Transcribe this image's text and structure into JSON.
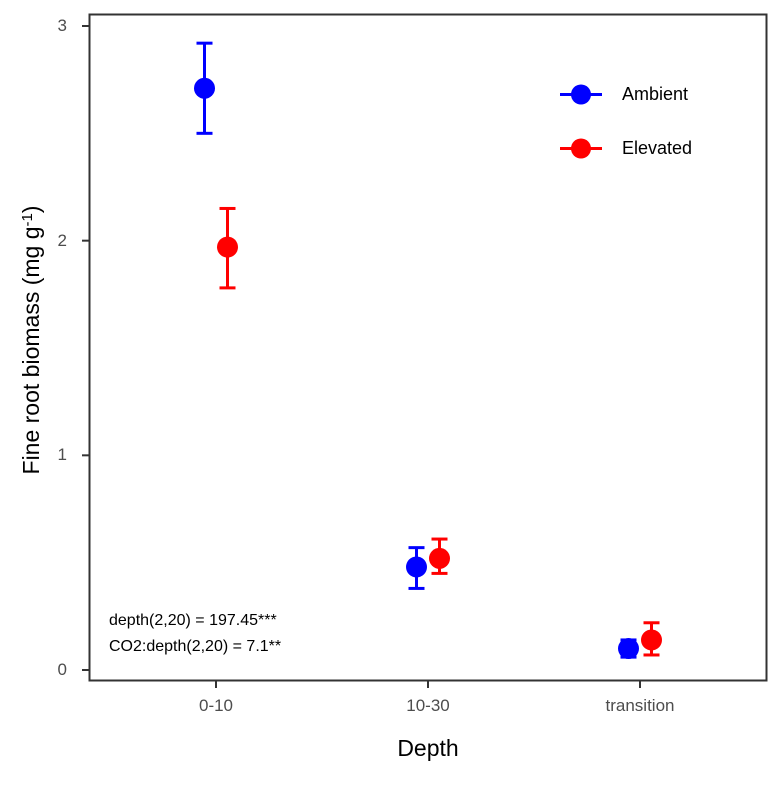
{
  "colors": {
    "ambient": "#0000FF",
    "elevated": "#FF0000",
    "panel_border": "#333333",
    "tick_label": "#4D4D4D",
    "text": "#000000",
    "background": "#FFFFFF"
  },
  "chart_data": {
    "type": "scatter",
    "title": "",
    "xlabel": "Depth",
    "ylabel": "Fine root biomass (mg g-1)",
    "ylabel_parts": {
      "main": "Fine root biomass (mg g",
      "sup": "-1",
      "close": ")"
    },
    "categories": [
      "0-10",
      "10-30",
      "transition"
    ],
    "y_axis": {
      "ticks": [
        0,
        1,
        2,
        3
      ],
      "range": [
        -0.05,
        3.06
      ]
    },
    "grid": false,
    "legend_position": "top-right-inside",
    "series": [
      {
        "name": "Ambient",
        "color": "#0000FF",
        "values": [
          2.71,
          0.48,
          0.1
        ],
        "ci_low": [
          2.5,
          0.38,
          0.06
        ],
        "ci_high": [
          2.92,
          0.57,
          0.14
        ]
      },
      {
        "name": "Elevated",
        "color": "#FF0000",
        "values": [
          1.97,
          0.52,
          0.14
        ],
        "ci_low": [
          1.78,
          0.45,
          0.07
        ],
        "ci_high": [
          2.15,
          0.61,
          0.22
        ]
      }
    ],
    "annotations": [
      "depth(2,20) = 197.45***",
      "CO2:depth(2,20) = 7.1**"
    ]
  }
}
